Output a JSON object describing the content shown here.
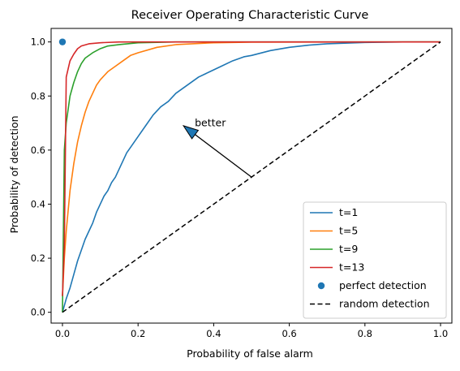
{
  "chart_data": {
    "type": "line",
    "title": "Receiver Operating Characteristic Curve",
    "xlabel": "Probability of false alarm",
    "ylabel": "Probability of detection",
    "xlim": [
      -0.03,
      1.03
    ],
    "ylim": [
      -0.04,
      1.05
    ],
    "x_ticks": [
      0.0,
      0.2,
      0.4,
      0.6,
      0.8,
      1.0
    ],
    "x_tick_labels": [
      "0.0",
      "0.2",
      "0.4",
      "0.6",
      "0.8",
      "1.0"
    ],
    "y_ticks": [
      0.0,
      0.2,
      0.4,
      0.6,
      0.8,
      1.0
    ],
    "y_tick_labels": [
      "0.0",
      "0.2",
      "0.4",
      "0.6",
      "0.8",
      "1.0"
    ],
    "grid": false,
    "legend_position": "bottom-right",
    "series": [
      {
        "name": "t=1",
        "kind": "line",
        "color": "#1f77b4",
        "points": [
          [
            0.0,
            0.0
          ],
          [
            0.01,
            0.05
          ],
          [
            0.02,
            0.09
          ],
          [
            0.03,
            0.14
          ],
          [
            0.04,
            0.19
          ],
          [
            0.05,
            0.23
          ],
          [
            0.06,
            0.27
          ],
          [
            0.07,
            0.3
          ],
          [
            0.08,
            0.33
          ],
          [
            0.09,
            0.37
          ],
          [
            0.1,
            0.4
          ],
          [
            0.11,
            0.43
          ],
          [
            0.12,
            0.45
          ],
          [
            0.13,
            0.48
          ],
          [
            0.14,
            0.5
          ],
          [
            0.15,
            0.53
          ],
          [
            0.16,
            0.56
          ],
          [
            0.17,
            0.59
          ],
          [
            0.18,
            0.61
          ],
          [
            0.2,
            0.65
          ],
          [
            0.22,
            0.69
          ],
          [
            0.24,
            0.73
          ],
          [
            0.26,
            0.76
          ],
          [
            0.28,
            0.78
          ],
          [
            0.3,
            0.81
          ],
          [
            0.33,
            0.84
          ],
          [
            0.36,
            0.87
          ],
          [
            0.39,
            0.89
          ],
          [
            0.42,
            0.91
          ],
          [
            0.45,
            0.93
          ],
          [
            0.48,
            0.945
          ],
          [
            0.5,
            0.95
          ],
          [
            0.55,
            0.968
          ],
          [
            0.6,
            0.98
          ],
          [
            0.65,
            0.988
          ],
          [
            0.7,
            0.993
          ],
          [
            0.8,
            0.998
          ],
          [
            0.9,
            1.0
          ],
          [
            1.0,
            1.0
          ]
        ]
      },
      {
        "name": "t=5",
        "kind": "line",
        "color": "#ff7f0e",
        "points": [
          [
            0.0,
            0.06
          ],
          [
            0.005,
            0.2
          ],
          [
            0.01,
            0.3
          ],
          [
            0.02,
            0.45
          ],
          [
            0.03,
            0.55
          ],
          [
            0.04,
            0.63
          ],
          [
            0.05,
            0.69
          ],
          [
            0.06,
            0.74
          ],
          [
            0.07,
            0.78
          ],
          [
            0.08,
            0.81
          ],
          [
            0.09,
            0.84
          ],
          [
            0.1,
            0.86
          ],
          [
            0.12,
            0.89
          ],
          [
            0.14,
            0.91
          ],
          [
            0.16,
            0.93
          ],
          [
            0.18,
            0.95
          ],
          [
            0.2,
            0.96
          ],
          [
            0.25,
            0.98
          ],
          [
            0.3,
            0.99
          ],
          [
            0.4,
            0.997
          ],
          [
            0.5,
            0.999
          ],
          [
            1.0,
            1.0
          ]
        ]
      },
      {
        "name": "t=9",
        "kind": "line",
        "color": "#2ca02c",
        "points": [
          [
            0.0,
            0.0
          ],
          [
            0.005,
            0.6
          ],
          [
            0.01,
            0.7
          ],
          [
            0.015,
            0.75
          ],
          [
            0.02,
            0.8
          ],
          [
            0.03,
            0.85
          ],
          [
            0.04,
            0.89
          ],
          [
            0.05,
            0.92
          ],
          [
            0.06,
            0.94
          ],
          [
            0.08,
            0.96
          ],
          [
            0.1,
            0.975
          ],
          [
            0.12,
            0.985
          ],
          [
            0.15,
            0.99
          ],
          [
            0.2,
            0.997
          ],
          [
            0.3,
            1.0
          ],
          [
            1.0,
            1.0
          ]
        ]
      },
      {
        "name": "t=13",
        "kind": "line",
        "color": "#d62728",
        "points": [
          [
            0.0,
            0.06
          ],
          [
            0.005,
            0.25
          ],
          [
            0.01,
            0.87
          ],
          [
            0.015,
            0.9
          ],
          [
            0.02,
            0.93
          ],
          [
            0.03,
            0.955
          ],
          [
            0.04,
            0.975
          ],
          [
            0.05,
            0.985
          ],
          [
            0.07,
            0.993
          ],
          [
            0.1,
            0.997
          ],
          [
            0.15,
            1.0
          ],
          [
            1.0,
            1.0
          ]
        ]
      },
      {
        "name": "perfect detection",
        "kind": "scatter",
        "color": "#1f77b4",
        "points": [
          [
            0.0,
            1.0
          ]
        ]
      },
      {
        "name": "random detection",
        "kind": "dashed-line",
        "color": "#000000",
        "points": [
          [
            0.0,
            0.0
          ],
          [
            1.0,
            1.0
          ]
        ]
      }
    ],
    "annotation": {
      "text": "better",
      "text_position": [
        0.35,
        0.7
      ],
      "arrow_from": [
        0.5,
        0.5
      ],
      "arrow_to": [
        0.32,
        0.69
      ]
    }
  }
}
